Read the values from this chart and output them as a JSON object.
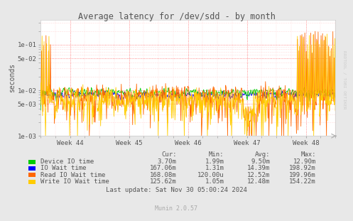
{
  "title": "Average latency for /dev/sdd - by month",
  "ylabel": "seconds",
  "bg_color": "#e8e8e8",
  "plot_bg_color": "#ffffff",
  "week_labels": [
    "Week 44",
    "Week 45",
    "Week 46",
    "Week 47",
    "Week 48"
  ],
  "rrdtool_text": "RRDTOOL / TOBI OETIKER",
  "munin_text": "Munin 2.0.57",
  "last_update": "Last update: Sat Nov 30 05:00:24 2024",
  "legend": [
    {
      "label": "Device IO time",
      "color": "#00cc00"
    },
    {
      "label": "IO Wait time",
      "color": "#0000ff"
    },
    {
      "label": "Read IO Wait time",
      "color": "#ff6600"
    },
    {
      "label": "Write IO Wait time",
      "color": "#ffcc00"
    }
  ],
  "stats_headers": [
    "Cur:",
    "Min:",
    "Avg:",
    "Max:"
  ],
  "stats_rows": [
    [
      "3.70m",
      "1.99m",
      "9.50m",
      "12.90m"
    ],
    [
      "167.06m",
      "1.31m",
      "14.39m",
      "198.92m"
    ],
    [
      "168.08m",
      "120.00u",
      "12.52m",
      "199.96m"
    ],
    [
      "125.62m",
      "1.05m",
      "12.48m",
      "154.22m"
    ]
  ]
}
